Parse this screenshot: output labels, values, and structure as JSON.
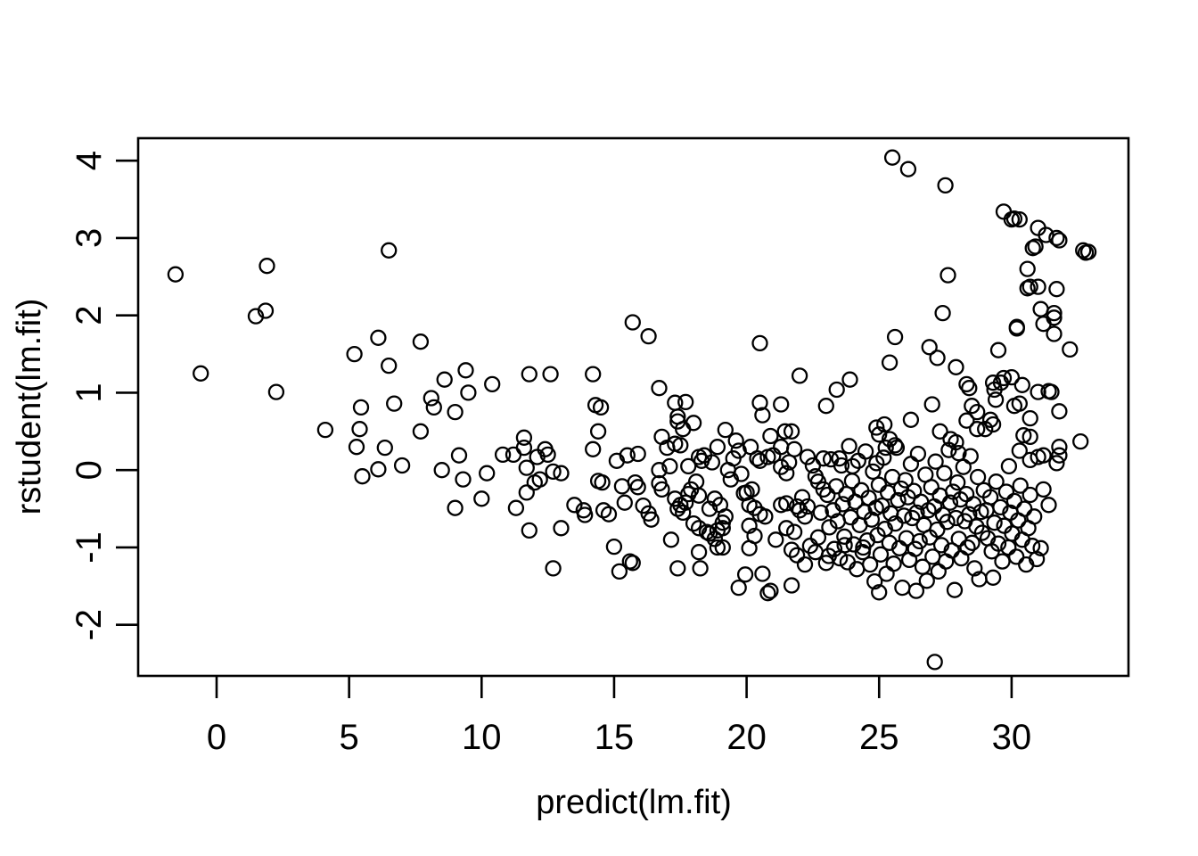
{
  "figure": {
    "background": "#ffffff",
    "foreground": "#000000"
  },
  "chart_data": {
    "type": "scatter",
    "title": "",
    "xlabel": "predict(lm.fit)",
    "ylabel": "rstudent(lm.fit)",
    "x_ticks": [
      0,
      5,
      10,
      15,
      20,
      25,
      30
    ],
    "y_ticks": [
      -2,
      -1,
      0,
      1,
      2,
      3,
      4
    ],
    "xlim": [
      -2.96,
      34.41
    ],
    "ylim": [
      -2.66,
      4.29
    ],
    "grid": false,
    "legend": null,
    "marker": {
      "shape": "open-circle",
      "color": "#000000",
      "radius_px": 8,
      "stroke_px": 2.3
    },
    "axis_color": "#000000",
    "points": [
      [
        -1.55,
        2.53
      ],
      [
        -0.6,
        1.25
      ],
      [
        1.48,
        1.99
      ],
      [
        1.85,
        2.06
      ],
      [
        1.9,
        2.64
      ],
      [
        2.25,
        1.01
      ],
      [
        4.1,
        0.52
      ],
      [
        5.2,
        1.5
      ],
      [
        5.28,
        0.3
      ],
      [
        5.4,
        0.53
      ],
      [
        5.45,
        0.81
      ],
      [
        5.5,
        -0.08
      ],
      [
        6.1,
        1.71
      ],
      [
        6.1,
        0.01
      ],
      [
        6.35,
        0.29
      ],
      [
        6.5,
        2.84
      ],
      [
        6.5,
        1.35
      ],
      [
        6.7,
        0.86
      ],
      [
        7.0,
        0.06
      ],
      [
        7.7,
        1.66
      ],
      [
        7.7,
        0.5
      ],
      [
        8.1,
        0.93
      ],
      [
        8.2,
        0.81
      ],
      [
        8.5,
        0.0
      ],
      [
        8.6,
        1.17
      ],
      [
        9.0,
        0.75
      ],
      [
        9.0,
        -0.49
      ],
      [
        9.15,
        0.19
      ],
      [
        9.3,
        -0.12
      ],
      [
        9.4,
        1.29
      ],
      [
        9.5,
        1.0
      ],
      [
        10.0,
        -0.37
      ],
      [
        10.2,
        -0.04
      ],
      [
        10.4,
        1.11
      ],
      [
        10.8,
        0.2
      ],
      [
        11.2,
        0.2
      ],
      [
        11.3,
        -0.49
      ],
      [
        11.6,
        0.42
      ],
      [
        11.6,
        0.29
      ],
      [
        11.7,
        0.03
      ],
      [
        11.7,
        -0.29
      ],
      [
        11.8,
        1.24
      ],
      [
        11.8,
        -0.78
      ],
      [
        12.0,
        -0.16
      ],
      [
        12.1,
        0.17
      ],
      [
        12.2,
        -0.12
      ],
      [
        12.4,
        0.27
      ],
      [
        12.5,
        0.2
      ],
      [
        12.6,
        1.24
      ],
      [
        12.7,
        -0.02
      ],
      [
        12.7,
        -1.27
      ],
      [
        13.0,
        -0.04
      ],
      [
        13.0,
        -0.75
      ],
      [
        13.5,
        -0.45
      ],
      [
        13.85,
        -0.52
      ],
      [
        13.9,
        -0.58
      ],
      [
        14.2,
        1.24
      ],
      [
        14.2,
        0.27
      ],
      [
        14.3,
        0.84
      ],
      [
        14.4,
        0.5
      ],
      [
        14.4,
        -0.14
      ],
      [
        14.5,
        0.81
      ],
      [
        14.55,
        -0.16
      ],
      [
        14.6,
        -0.52
      ],
      [
        14.8,
        -0.57
      ],
      [
        15.0,
        -0.99
      ],
      [
        15.1,
        0.12
      ],
      [
        15.2,
        -1.31
      ],
      [
        15.3,
        -0.21
      ],
      [
        15.4,
        -0.42
      ],
      [
        15.5,
        0.19
      ],
      [
        15.6,
        -1.18
      ],
      [
        15.7,
        1.91
      ],
      [
        15.7,
        -1.2
      ],
      [
        15.8,
        -0.16
      ],
      [
        15.9,
        0.21
      ],
      [
        15.9,
        -0.22
      ],
      [
        16.1,
        -0.46
      ],
      [
        16.3,
        1.73
      ],
      [
        16.3,
        -0.56
      ],
      [
        16.4,
        -0.64
      ],
      [
        16.7,
        0.0
      ],
      [
        16.7,
        -0.17
      ],
      [
        16.7,
        1.06
      ],
      [
        16.8,
        0.43
      ],
      [
        16.8,
        -0.25
      ],
      [
        17.0,
        0.29
      ],
      [
        17.1,
        0.05
      ],
      [
        17.15,
        -0.9
      ],
      [
        17.3,
        0.87
      ],
      [
        17.3,
        0.34
      ],
      [
        17.3,
        -0.37
      ],
      [
        17.4,
        0.63
      ],
      [
        17.4,
        0.69
      ],
      [
        17.4,
        -0.5
      ],
      [
        17.4,
        -1.27
      ],
      [
        17.5,
        0.32
      ],
      [
        17.5,
        -0.45
      ],
      [
        17.6,
        0.53
      ],
      [
        17.6,
        -0.55
      ],
      [
        17.7,
        0.88
      ],
      [
        17.7,
        -0.42
      ],
      [
        17.8,
        0.05
      ],
      [
        17.8,
        -0.31
      ],
      [
        17.9,
        -0.25
      ],
      [
        18.0,
        0.61
      ],
      [
        18.0,
        -0.69
      ],
      [
        18.1,
        -0.15
      ],
      [
        18.2,
        0.17
      ],
      [
        18.2,
        -0.33
      ],
      [
        18.2,
        -0.75
      ],
      [
        18.2,
        -1.06
      ],
      [
        18.25,
        -1.27
      ],
      [
        18.3,
        0.12
      ],
      [
        18.4,
        0.19
      ],
      [
        18.5,
        -0.8
      ],
      [
        18.6,
        -0.5
      ],
      [
        18.6,
        -0.82
      ],
      [
        18.7,
        0.1
      ],
      [
        18.8,
        -0.37
      ],
      [
        18.8,
        -0.89
      ],
      [
        18.9,
        0.3
      ],
      [
        18.9,
        -0.78
      ],
      [
        18.9,
        -1.0
      ],
      [
        19.0,
        -0.45
      ],
      [
        19.1,
        -0.68
      ],
      [
        19.1,
        -0.75
      ],
      [
        19.1,
        -1.0
      ],
      [
        19.2,
        0.52
      ],
      [
        19.2,
        -0.6
      ],
      [
        19.3,
        0.0
      ],
      [
        19.4,
        -0.12
      ],
      [
        19.5,
        0.15
      ],
      [
        19.6,
        0.38
      ],
      [
        19.7,
        0.25
      ],
      [
        19.7,
        -1.52
      ],
      [
        19.8,
        -0.05
      ],
      [
        19.9,
        -0.3
      ],
      [
        19.95,
        -1.35
      ],
      [
        20.0,
        -0.29
      ],
      [
        20.1,
        -0.45
      ],
      [
        20.1,
        -0.72
      ],
      [
        20.1,
        -1.01
      ],
      [
        20.15,
        0.3
      ],
      [
        20.2,
        -0.25
      ],
      [
        20.3,
        -0.49
      ],
      [
        20.3,
        -0.85
      ],
      [
        20.4,
        0.15
      ],
      [
        20.5,
        1.64
      ],
      [
        20.5,
        0.87
      ],
      [
        20.5,
        0.12
      ],
      [
        20.5,
        -0.57
      ],
      [
        20.6,
        0.71
      ],
      [
        20.6,
        -1.34
      ],
      [
        20.7,
        -0.6
      ],
      [
        20.8,
        0.17
      ],
      [
        20.8,
        -1.59
      ],
      [
        20.9,
        0.44
      ],
      [
        20.9,
        -1.56
      ],
      [
        21.0,
        0.19
      ],
      [
        21.1,
        -0.9
      ],
      [
        21.3,
        0.85
      ],
      [
        21.3,
        0.3
      ],
      [
        21.3,
        0.04
      ],
      [
        21.3,
        -0.45
      ],
      [
        21.45,
        0.5
      ],
      [
        21.5,
        -0.04
      ],
      [
        21.5,
        -0.43
      ],
      [
        21.5,
        -0.75
      ],
      [
        21.6,
        0.1
      ],
      [
        21.7,
        0.5
      ],
      [
        21.7,
        -1.03
      ],
      [
        21.7,
        -1.49
      ],
      [
        21.8,
        0.27
      ],
      [
        21.8,
        -0.8
      ],
      [
        21.9,
        -0.47
      ],
      [
        21.9,
        -1.1
      ],
      [
        22.0,
        1.22
      ],
      [
        22.0,
        -0.52
      ],
      [
        22.1,
        -0.35
      ],
      [
        22.2,
        -0.6
      ],
      [
        22.2,
        -1.22
      ],
      [
        22.3,
        0.17
      ],
      [
        22.3,
        -0.47
      ],
      [
        22.4,
        -0.98
      ],
      [
        22.5,
        0.06
      ],
      [
        22.6,
        -0.08
      ],
      [
        22.6,
        -1.06
      ],
      [
        22.7,
        -0.15
      ],
      [
        22.7,
        -0.87
      ],
      [
        22.8,
        -0.55
      ],
      [
        22.9,
        0.15
      ],
      [
        22.9,
        -0.25
      ],
      [
        23.0,
        0.83
      ],
      [
        23.0,
        -1.2
      ],
      [
        23.05,
        -0.32
      ],
      [
        23.1,
        -1.11
      ],
      [
        23.12,
        -0.74
      ],
      [
        23.18,
        0.14
      ],
      [
        23.26,
        -0.52
      ],
      [
        23.31,
        -1.02
      ],
      [
        23.38,
        -0.21
      ],
      [
        23.4,
        1.04
      ],
      [
        23.44,
        -0.66
      ],
      [
        23.5,
        0.15
      ],
      [
        23.52,
        -1.14
      ],
      [
        23.58,
        0.06
      ],
      [
        23.63,
        -0.44
      ],
      [
        23.69,
        -0.86
      ],
      [
        23.7,
        -0.97
      ],
      [
        23.76,
        -0.31
      ],
      [
        23.81,
        -1.19
      ],
      [
        23.87,
        0.31
      ],
      [
        23.9,
        1.17
      ],
      [
        23.93,
        -0.61
      ],
      [
        23.98,
        -0.14
      ],
      [
        24.0,
        0.05
      ],
      [
        24.04,
        -0.96
      ],
      [
        24.1,
        -0.41
      ],
      [
        24.16,
        -1.28
      ],
      [
        24.21,
        0.12
      ],
      [
        24.27,
        -0.71
      ],
      [
        24.33,
        -0.26
      ],
      [
        24.38,
        -1.06
      ],
      [
        24.4,
        -1.0
      ],
      [
        24.44,
        -0.54
      ],
      [
        24.49,
        0.24
      ],
      [
        24.55,
        -0.91
      ],
      [
        24.61,
        -0.36
      ],
      [
        24.66,
        -1.22
      ],
      [
        24.72,
        -0.64
      ],
      [
        24.77,
        -0.02
      ],
      [
        24.83,
        -1.44
      ],
      [
        24.88,
        -0.49
      ],
      [
        24.9,
        0.55
      ],
      [
        24.9,
        0.09
      ],
      [
        24.94,
        -0.84
      ],
      [
        24.99,
        -0.19
      ],
      [
        25.0,
        0.46
      ],
      [
        25.0,
        -1.58
      ],
      [
        25.06,
        -1.09
      ],
      [
        25.11,
        -0.46
      ],
      [
        25.17,
        0.16
      ],
      [
        25.2,
        0.59
      ],
      [
        25.22,
        -0.76
      ],
      [
        25.25,
        0.29
      ],
      [
        25.28,
        -1.34
      ],
      [
        25.33,
        -0.29
      ],
      [
        25.39,
        -0.94
      ],
      [
        25.4,
        1.39
      ],
      [
        25.4,
        0.4
      ],
      [
        25.44,
        -0.56
      ],
      [
        25.5,
        4.04
      ],
      [
        25.5,
        -0.09
      ],
      [
        25.55,
        -1.21
      ],
      [
        25.6,
        1.72
      ],
      [
        25.6,
        0.32
      ],
      [
        25.61,
        -0.69
      ],
      [
        25.66,
        0.29
      ],
      [
        25.72,
        -0.39
      ],
      [
        25.77,
        -1.01
      ],
      [
        25.83,
        -0.24
      ],
      [
        25.88,
        -1.52
      ],
      [
        25.94,
        -0.59
      ],
      [
        25.99,
        -0.13
      ],
      [
        26.03,
        -0.88
      ],
      [
        26.09,
        -0.35
      ],
      [
        26.1,
        3.89
      ],
      [
        26.14,
        -1.16
      ],
      [
        26.2,
        0.65
      ],
      [
        26.2,
        0.08
      ],
      [
        26.25,
        -0.62
      ],
      [
        26.31,
        -0.27
      ],
      [
        26.36,
        -1.02
      ],
      [
        26.4,
        -1.56
      ],
      [
        26.42,
        -0.55
      ],
      [
        26.47,
        0.21
      ],
      [
        26.53,
        -0.92
      ],
      [
        26.58,
        -0.41
      ],
      [
        26.64,
        -1.25
      ],
      [
        26.69,
        -0.71
      ],
      [
        26.75,
        -0.06
      ],
      [
        26.8,
        -1.43
      ],
      [
        26.86,
        -0.52
      ],
      [
        26.9,
        1.59
      ],
      [
        26.91,
        -0.87
      ],
      [
        26.97,
        -0.22
      ],
      [
        27.0,
        0.85
      ],
      [
        27.02,
        -1.12
      ],
      [
        27.08,
        -0.47
      ],
      [
        27.1,
        -2.48
      ],
      [
        27.13,
        0.11
      ],
      [
        27.19,
        -0.77
      ],
      [
        27.2,
        1.45
      ],
      [
        27.24,
        -1.31
      ],
      [
        27.3,
        0.5
      ],
      [
        27.3,
        -0.33
      ],
      [
        27.35,
        -0.97
      ],
      [
        27.4,
        2.03
      ],
      [
        27.41,
        -0.58
      ],
      [
        27.46,
        -0.04
      ],
      [
        27.5,
        3.68
      ],
      [
        27.52,
        -1.18
      ],
      [
        27.57,
        -0.67
      ],
      [
        27.6,
        2.52
      ],
      [
        27.63,
        0.26
      ],
      [
        27.68,
        -0.42
      ],
      [
        27.7,
        0.4
      ],
      [
        27.74,
        -1.04
      ],
      [
        27.79,
        -0.28
      ],
      [
        27.85,
        -1.55
      ],
      [
        27.9,
        1.33
      ],
      [
        27.9,
        0.36
      ],
      [
        27.9,
        -0.62
      ],
      [
        27.96,
        -0.16
      ],
      [
        28.0,
        0.22
      ],
      [
        28.01,
        -0.89
      ],
      [
        28.07,
        -0.38
      ],
      [
        28.1,
        -1.14
      ],
      [
        28.18,
        0.04
      ],
      [
        28.23,
        -0.66
      ],
      [
        28.29,
        -0.31
      ],
      [
        28.3,
        1.11
      ],
      [
        28.3,
        0.64
      ],
      [
        28.34,
        -1.0
      ],
      [
        28.4,
        1.06
      ],
      [
        28.4,
        -0.57
      ],
      [
        28.45,
        0.18
      ],
      [
        28.51,
        -0.94
      ],
      [
        28.5,
        0.83
      ],
      [
        28.56,
        -0.44
      ],
      [
        28.6,
        -1.27
      ],
      [
        28.67,
        -0.73
      ],
      [
        28.7,
        0.75
      ],
      [
        28.7,
        0.53
      ],
      [
        28.73,
        -0.09
      ],
      [
        28.78,
        -1.41
      ],
      [
        28.84,
        -0.54
      ],
      [
        28.89,
        -0.81
      ],
      [
        28.95,
        -0.26
      ],
      [
        29.0,
        0.53
      ],
      [
        29.05,
        -0.52
      ],
      [
        29.1,
        -0.88
      ],
      [
        29.2,
        -0.35
      ],
      [
        29.2,
        0.65
      ],
      [
        29.25,
        -1.05
      ],
      [
        29.3,
        1.13
      ],
      [
        29.3,
        0.59
      ],
      [
        29.3,
        -1.39
      ],
      [
        29.35,
        1.04
      ],
      [
        29.35,
        -0.68
      ],
      [
        29.4,
        0.91
      ],
      [
        29.42,
        -0.15
      ],
      [
        29.5,
        1.55
      ],
      [
        29.5,
        -0.95
      ],
      [
        29.58,
        -0.48
      ],
      [
        29.6,
        1.13
      ],
      [
        29.65,
        -1.18
      ],
      [
        29.7,
        3.34
      ],
      [
        29.7,
        1.19
      ],
      [
        29.72,
        -0.72
      ],
      [
        29.8,
        -0.28
      ],
      [
        29.88,
        -1.0
      ],
      [
        29.9,
        0.05
      ],
      [
        29.95,
        -0.55
      ],
      [
        30.0,
        3.24
      ],
      [
        30.0,
        1.2
      ],
      [
        30.02,
        -0.82
      ],
      [
        30.1,
        3.25
      ],
      [
        30.1,
        0.83
      ],
      [
        30.1,
        -0.4
      ],
      [
        30.18,
        -1.12
      ],
      [
        30.2,
        1.85
      ],
      [
        30.2,
        1.83
      ],
      [
        30.25,
        -0.65
      ],
      [
        30.3,
        3.24
      ],
      [
        30.3,
        0.86
      ],
      [
        30.3,
        0.25
      ],
      [
        30.33,
        -0.2
      ],
      [
        30.4,
        1.1
      ],
      [
        30.4,
        -0.9
      ],
      [
        30.45,
        0.45
      ],
      [
        30.48,
        -0.5
      ],
      [
        30.55,
        -1.22
      ],
      [
        30.6,
        2.6
      ],
      [
        30.6,
        2.35
      ],
      [
        30.63,
        -0.75
      ],
      [
        30.7,
        2.37
      ],
      [
        30.7,
        0.67
      ],
      [
        30.7,
        0.43
      ],
      [
        30.7,
        0.13
      ],
      [
        30.7,
        -0.32
      ],
      [
        30.78,
        -0.98
      ],
      [
        30.8,
        2.87
      ],
      [
        30.85,
        -0.6
      ],
      [
        30.9,
        2.89
      ],
      [
        30.95,
        -1.15
      ],
      [
        31.0,
        3.13
      ],
      [
        31.0,
        2.37
      ],
      [
        31.0,
        1.01
      ],
      [
        31.0,
        0.17
      ],
      [
        31.1,
        2.08
      ],
      [
        31.1,
        -1.01
      ],
      [
        31.2,
        1.89
      ],
      [
        31.2,
        0.19
      ],
      [
        31.2,
        -0.25
      ],
      [
        31.3,
        3.04
      ],
      [
        31.4,
        1.02
      ],
      [
        31.4,
        -0.45
      ],
      [
        31.5,
        1.01
      ],
      [
        31.6,
        2.03
      ],
      [
        31.6,
        1.97
      ],
      [
        31.6,
        1.76
      ],
      [
        31.7,
        3.0
      ],
      [
        31.7,
        2.34
      ],
      [
        31.7,
        0.09
      ],
      [
        31.8,
        2.97
      ],
      [
        31.8,
        0.76
      ],
      [
        31.8,
        0.3
      ],
      [
        31.8,
        0.19
      ],
      [
        32.2,
        1.56
      ],
      [
        32.6,
        0.37
      ],
      [
        32.7,
        2.84
      ],
      [
        32.8,
        2.81
      ],
      [
        32.9,
        2.82
      ]
    ]
  }
}
